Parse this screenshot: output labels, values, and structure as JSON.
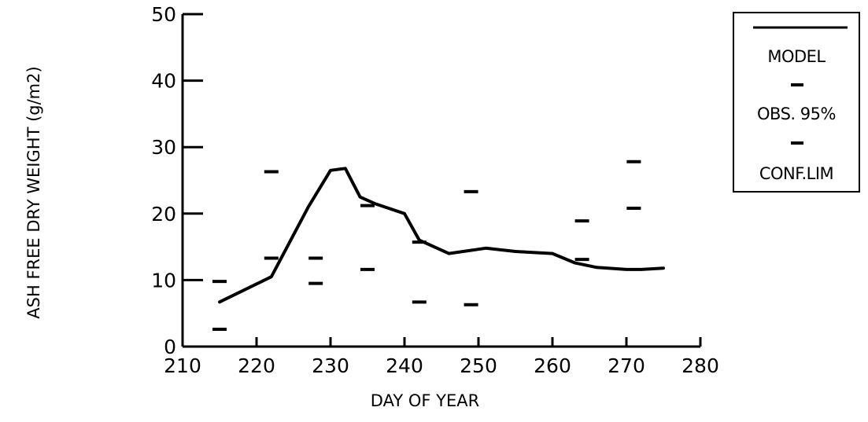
{
  "chart_data": {
    "type": "line",
    "xlabel": "DAY OF YEAR",
    "ylabel": "ASH FREE DRY WEIGHT (g/m2)",
    "xlim": [
      210,
      280
    ],
    "ylim": [
      0,
      50
    ],
    "x_ticks": [
      210,
      220,
      230,
      240,
      250,
      260,
      270,
      280
    ],
    "x_tick_labels": [
      "210",
      "220",
      "230",
      "240",
      "250",
      "260",
      "270",
      "280"
    ],
    "y_ticks": [
      0,
      10,
      20,
      30,
      40,
      50
    ],
    "y_tick_labels": [
      "0",
      "10",
      "20",
      "30",
      "40",
      "50"
    ],
    "grid": false,
    "legend_position": "top-right",
    "legend": {
      "model_label": "MODEL",
      "obs_label": "OBS. 95%",
      "conf_label": "CONF.LIM"
    },
    "series": [
      {
        "name": "MODEL",
        "style": "line",
        "x": [
          215,
          222,
          227,
          230,
          232,
          234,
          236,
          240,
          242,
          246,
          251,
          255,
          260,
          263,
          266,
          270,
          272,
          275
        ],
        "y": [
          6.7,
          10.5,
          21,
          26.5,
          26.8,
          22.5,
          21.5,
          20,
          16,
          14,
          14.8,
          14.3,
          14,
          12.6,
          11.9,
          11.6,
          11.6,
          11.8
        ]
      },
      {
        "name": "OBS. 95% CONF.LIM",
        "style": "dash-marker",
        "intervals": [
          {
            "x": 215,
            "low": 2.6,
            "high": 9.8
          },
          {
            "x": 222,
            "low": 13.3,
            "high": 26.3
          },
          {
            "x": 228,
            "low": 9.5,
            "high": 13.3
          },
          {
            "x": 235,
            "low": 11.6,
            "high": 21.2
          },
          {
            "x": 242,
            "low": 6.7,
            "high": 15.7
          },
          {
            "x": 249,
            "low": 6.3,
            "high": 23.3
          },
          {
            "x": 264,
            "low": 13.1,
            "high": 18.9
          },
          {
            "x": 271,
            "low": 20.8,
            "high": 27.8
          }
        ]
      }
    ]
  },
  "colors": {
    "ink": "#000000",
    "background": "#ffffff"
  }
}
